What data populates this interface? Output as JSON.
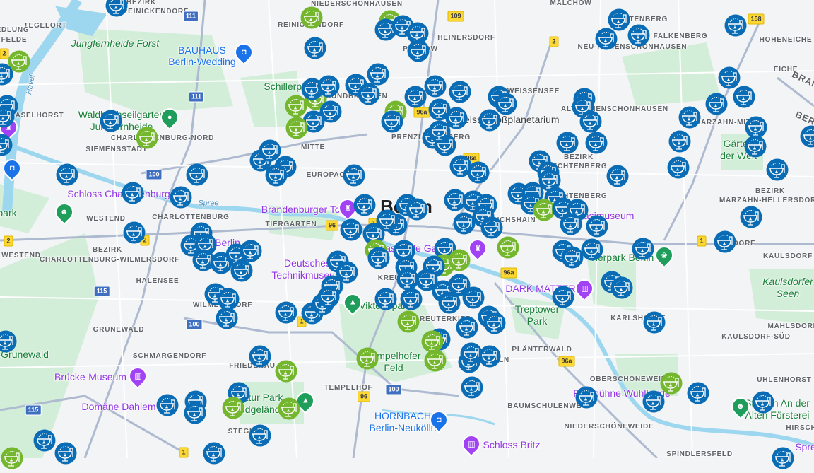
{
  "map": {
    "marker_colors": {
      "blue": "#0a6cb4",
      "green": "#74b72e"
    },
    "marker_icon": "drinking-fountain-icon",
    "labels": {
      "bezirk_reinickendorf_1": "BEZIRK",
      "bezirk_reinickendorf_2": "REINICKENDORF",
      "tegelort": "TEGELORT",
      "edlung": "EDLUNG",
      "felde": "FELDE",
      "jungfernheide_forst": "Jungfernheide Forst",
      "bauhaus_1": "BAUHAUS",
      "bauhaus_2": "Berlin-Wedding",
      "haselhorst": "HASELHORST",
      "waldhochseilgarten_1": "Waldhochseilgarten",
      "waldhochseilgarten_2": "Jungfernheide",
      "charlottenburg_nord": "CHARLOTTENBURG-NORD",
      "siemensstadt": "SIEMENSSTADT",
      "havel": "Havel",
      "niederschoenhausen": "NIEDERSCHÖNHAUSEN",
      "reinickendorf": "REINICKENDORF",
      "heinersdorf": "HEINERSDORF",
      "pankow": "PANKOW",
      "weissensee": "WEISSENSEE",
      "planetarium": "Zeiss-Großplanetarium",
      "gesundbrunnen": "GESUNDBRUNNEN",
      "schillerpark": "Schillerpark",
      "mitte": "MITTE",
      "prenzlauer_berg": "PRENZLAUER BERG",
      "malchow": "MALCHOW",
      "wartenberg": "WARTENBERG",
      "falkenberg": "FALKENBERG",
      "neu_hohenschoenhausen": "NEU-HOHENSCHÖNHAUSEN",
      "hoheneiche": "HOHENEICHE",
      "eiche": "EICHE",
      "brandenburg": "BRANDENBURG",
      "berlin_rot": "BERLIN",
      "alt_hohenschoenhausen": "ALT-HOHENSCHÖNHAUSEN",
      "marzahn_mitte": "MARZAHN-MITTE",
      "gaerten_1": "Gärten",
      "gaerten_2": "der Welt",
      "bezirk_lichtenberg_1": "BEZIRK",
      "bezirk_lichtenberg_2": "LICHTENBERG",
      "lichtenberg": "LICHTENBERG",
      "stasimuseum": "Stasimuseum",
      "friedrichshain": "FRIEDRICHSHAIN",
      "bezirk_marzahn_1": "BEZIRK",
      "bezirk_marzahn_2": "MARZAHN-HELLERSDORF",
      "biesdorf": "BIESDORF",
      "kaulsdorf": "KAULSDORF",
      "kaulsdorfer_seen_1": "Kaulsdorfer",
      "kaulsdorfer_seen_2": "Seen",
      "tierpark": "Tierpark Berlin",
      "east_side_gallery": "East Side Gallery",
      "dark_matter": "DARK MATTER",
      "treptower_1": "Treptower",
      "treptower_2": "Park",
      "karlshorst": "KARLSHORST",
      "mahlsdorf": "MAHLSDORF",
      "kaulsdorf_sued": "KAULSDORF-SÜD",
      "plaenterwald": "PLÄNTERWALD",
      "uhlenhorst": "UHLENHORST",
      "oberschoeneweide": "OBERSCHÖNEWEIDE",
      "parkbuehne": "Parkbühne Wuhlheide",
      "baumschulenweg": "BAUMSCHULENWEG",
      "stadion_1": "Stadion An der",
      "stadion_2": "Alten Försterei",
      "niederschoeneweide": "NIEDERSCHÖNEWEIDE",
      "hirsch": "HIRSCH",
      "spre": "Spre",
      "spindlersfeld": "SPINDLERSFELD",
      "schloss_britz": "Schloss Britz",
      "hornbach_1": "HORNBACH",
      "hornbach_2": "Berlin-Neukölln",
      "neukoelln": "NEUKÖLLN",
      "reuter": "REUTERKIEZ",
      "tempelhofer_1": "Tempelhofer",
      "tempelhofer_2": "Feld",
      "tempelhof": "TEMPELHOF",
      "natur_park_1": "Natur Park",
      "natur_park_2": "Südgelände",
      "steglitz": "STEGLITZ",
      "friedenau": "FRIEDENAU",
      "domaene": "Domäne Dahlem",
      "bruecke": "Brücke-Museum",
      "schmargendorf": "SCHMARGENDORF",
      "grunewald_dist": "GRUNEWALD",
      "grunewald": "Grunewald",
      "wilmersdorf": "WILMERSDORF",
      "halensee": "HALENSEE",
      "viktoriapark": "Viktoriapark",
      "kreuzberg": "KREUZBERG",
      "technikmuseum_1": "Deutsches",
      "technikmuseum_2": "Technikmuseum",
      "zoo_berlin": "Berlin",
      "tiergarten": "TIERGARTEN",
      "brandenburger_tor": "Brandenburger Tor",
      "berlin_city": "Berlin",
      "europacity": "EUROPACITY",
      "bezirk_cw_1": "BEZIRK",
      "bezirk_cw_2": "CHARLOTTENBURG-WILMERSDORF",
      "westend_1": "WESTEND",
      "westend_2": "WESTEND",
      "charlottenburg": "CHARLOTTENBURG",
      "schloss_charlottenburg": "Schloss Charlottenburg",
      "spree": "Spree",
      "park": "park"
    },
    "road_shields": [
      "111",
      "111",
      "100",
      "100",
      "115",
      "115",
      "100",
      "109",
      "2",
      "96a",
      "96a",
      "96",
      "2",
      "2",
      "2",
      "1",
      "96a",
      "96a",
      "1",
      "1",
      "96",
      "158",
      "2"
    ]
  }
}
